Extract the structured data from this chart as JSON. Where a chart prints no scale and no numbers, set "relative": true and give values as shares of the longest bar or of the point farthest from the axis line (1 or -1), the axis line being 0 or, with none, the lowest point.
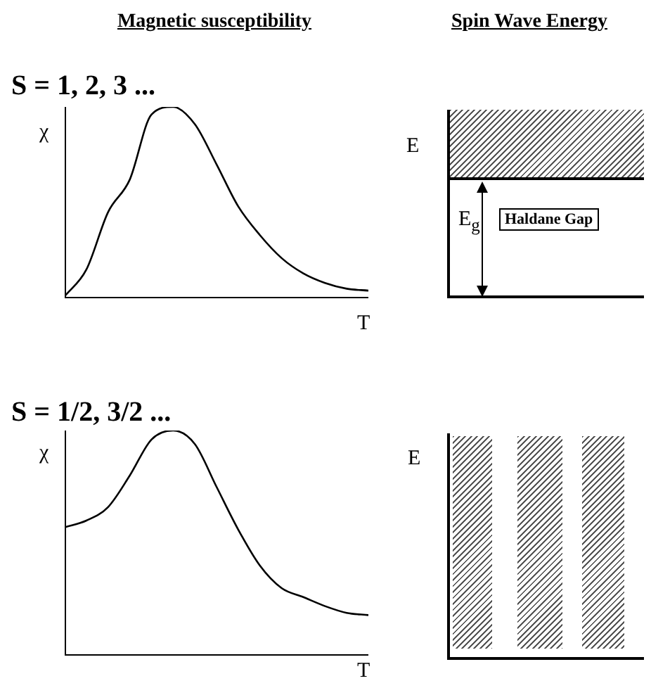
{
  "chart_data": [
    {
      "type": "line",
      "title": "Magnetic susceptibility",
      "subtitle": "S = 1, 2, 3 ...",
      "xlabel": "T",
      "ylabel": "χ",
      "relative": true,
      "legend": false,
      "grid": false,
      "marker": "none",
      "categories": [
        null,
        null,
        null,
        null,
        null,
        null,
        null,
        null,
        null,
        null,
        null,
        null,
        null,
        null,
        null
      ],
      "series": [
        {
          "color": "#000000",
          "values": [
            0.01,
            0.15,
            0.45,
            0.62,
            0.96,
            1,
            0.91,
            0.7,
            0.48,
            0.33,
            0.21,
            0.13,
            0.08,
            0.05,
            0.04
          ]
        }
      ]
    },
    {
      "type": "other",
      "title": "Spin Wave Energy",
      "ylabel": "E",
      "annotations": [
        "E$_{g}$",
        "Haldane Gap"
      ]
    },
    {
      "type": "line",
      "subtitle": "S = 1/2, 3/2 ...",
      "xlabel": "T",
      "ylabel": "χ",
      "relative": true,
      "legend": false,
      "grid": false,
      "marker": "none",
      "categories": [
        null,
        null,
        null,
        null,
        null,
        null,
        null,
        null,
        null,
        null,
        null,
        null,
        null,
        null,
        null
      ],
      "series": [
        {
          "color": "#000000",
          "values": [
            0.57,
            0.6,
            0.66,
            0.8,
            0.96,
            1,
            0.94,
            0.75,
            0.56,
            0.4,
            0.3,
            0.26,
            0.22,
            0.19,
            0.18
          ]
        }
      ]
    },
    {
      "type": "other",
      "ylabel": "E"
    }
  ]
}
